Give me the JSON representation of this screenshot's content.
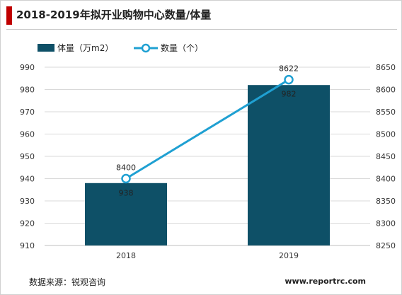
{
  "title": "2018-2019年拟开业购物中心数量/体量",
  "source": "数据来源：锐观咨询",
  "website": "www.reportrc.com",
  "colors": {
    "bar": "#0e5067",
    "line": "#1fa0d2",
    "accent": "#c00000"
  },
  "chart_data": {
    "type": "bar+line",
    "categories": [
      "2018",
      "2019"
    ],
    "series": [
      {
        "name": "体量（万m2）",
        "type": "bar",
        "axis": "left",
        "values": [
          938,
          982
        ]
      },
      {
        "name": "数量（个）",
        "type": "line",
        "axis": "right",
        "values": [
          8400,
          8622
        ]
      }
    ],
    "left_axis": {
      "ylim": [
        910,
        990
      ],
      "ticks": [
        "990",
        "980",
        "970",
        "960",
        "950",
        "940",
        "930",
        "920",
        "910"
      ]
    },
    "right_axis": {
      "ylim": [
        8250,
        8650
      ],
      "ticks": [
        "8650",
        "8600",
        "8550",
        "8500",
        "8450",
        "8400",
        "8350",
        "8300",
        "8250"
      ]
    },
    "grid": true,
    "legend_position": "top-left"
  }
}
